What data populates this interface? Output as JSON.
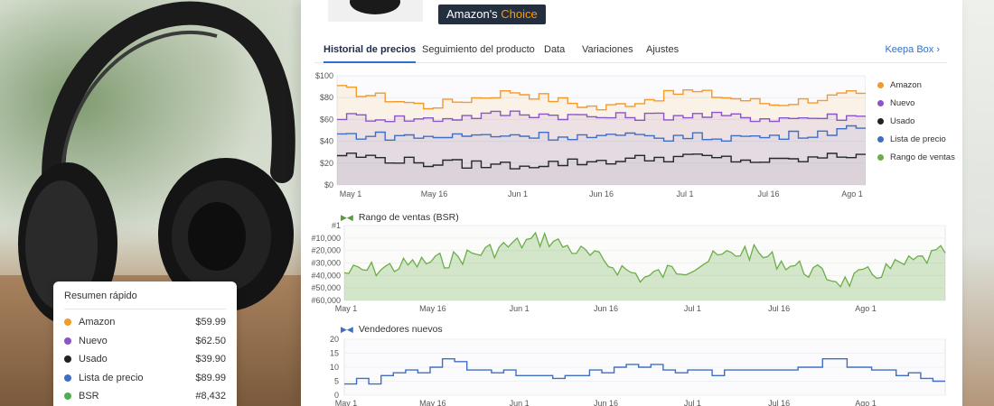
{
  "colors": {
    "amazon": "#f39a2b",
    "nuevo": "#8b55c8",
    "usado": "#222222",
    "lista": "#3f6fc4",
    "ventas": "#6cad4a",
    "accent": "#2f6fd0"
  },
  "badge": {
    "part1": "Amazon's ",
    "part2": "Choice"
  },
  "tabs": [
    {
      "label": "Historial de precios",
      "active": true
    },
    {
      "label": "Seguimiento del producto",
      "active": false
    },
    {
      "label": "Data",
      "active": false
    },
    {
      "label": "Variaciones",
      "active": false
    },
    {
      "label": "Ajustes",
      "active": false
    }
  ],
  "keepa_link": "Keepa Box  ›",
  "price_chart": {
    "y_ticks": [
      "$100",
      "$80",
      "$60",
      "$40",
      "$20",
      "$0"
    ],
    "x_ticks": [
      "May 1",
      "May 16",
      "Jun 1",
      "Jun 16",
      "Jul 1",
      "Jul 16",
      "Ago 1"
    ],
    "legend": [
      "Amazon",
      "Nuevo",
      "Usado",
      "Lista de precio",
      "Rango de ventas"
    ]
  },
  "bsr_chart": {
    "title": "Rango de ventas (BSR)",
    "icon": "chart-icon",
    "y_ticks": [
      "#1",
      "#10,000",
      "#20,000",
      "#30,000",
      "#40,000",
      "#50,000",
      "#60,000"
    ],
    "x_ticks": [
      "May 1",
      "May 16",
      "Jun 1",
      "Jun 16",
      "Jul 1",
      "Jul 16",
      "Ago 1"
    ]
  },
  "sellers_chart": {
    "title": "Vendedores nuevos",
    "icon": "chart-icon",
    "y_ticks": [
      "20",
      "15",
      "10",
      "5",
      "0"
    ],
    "x_ticks": [
      "May 1",
      "May 16",
      "Jun 1",
      "Jun 16",
      "Jul 1",
      "Jul 16",
      "Ago 1"
    ]
  },
  "chart_data": [
    {
      "type": "line",
      "ylim": [
        0,
        100
      ],
      "x": [
        "May 1",
        "May 16",
        "Jun 1",
        "Jun 16",
        "Jul 1",
        "Jul 16",
        "Ago 1"
      ],
      "series": [
        {
          "name": "Amazon",
          "values": [
            88,
            72,
            86,
            70,
            86,
            74,
            84
          ]
        },
        {
          "name": "Nuevo",
          "values": [
            63,
            60,
            66,
            62,
            64,
            61,
            63
          ]
        },
        {
          "name": "Usado",
          "values": [
            28,
            20,
            18,
            22,
            26,
            21,
            28
          ]
        },
        {
          "name": "Lista de precio",
          "values": [
            46,
            44,
            46,
            44,
            44,
            44,
            52
          ]
        }
      ]
    },
    {
      "type": "area",
      "ylim": [
        60000,
        1
      ],
      "x": [
        "May 1",
        "May 16",
        "Jun 1",
        "Jun 16",
        "Jul 1",
        "Jul 16",
        "Ago 1"
      ],
      "series": [
        {
          "name": "Rango de ventas (BSR)",
          "values": [
            38000,
            28000,
            10000,
            42000,
            20000,
            45000,
            22000
          ]
        }
      ]
    },
    {
      "type": "line",
      "ylim": [
        0,
        20
      ],
      "x": [
        "May 1",
        "May 16",
        "Jun 1",
        "Jun 16",
        "Jul 1",
        "Jul 16",
        "Ago 1"
      ],
      "series": [
        {
          "name": "Vendedores nuevos",
          "values": [
            3,
            12,
            6,
            10,
            8,
            12,
            5
          ]
        }
      ]
    }
  ],
  "summary": {
    "title": "Resumen rápido",
    "rows": [
      {
        "label": "Amazon",
        "value": "$59.99",
        "color": "#f39a2b"
      },
      {
        "label": "Nuevo",
        "value": "$62.50",
        "color": "#8b55c8"
      },
      {
        "label": "Usado",
        "value": "$39.90",
        "color": "#222222"
      },
      {
        "label": "Lista de precio",
        "value": "$89.99",
        "color": "#3f6fc4"
      },
      {
        "label": "BSR",
        "value": "#8,432",
        "color": "#4caf50"
      }
    ]
  }
}
